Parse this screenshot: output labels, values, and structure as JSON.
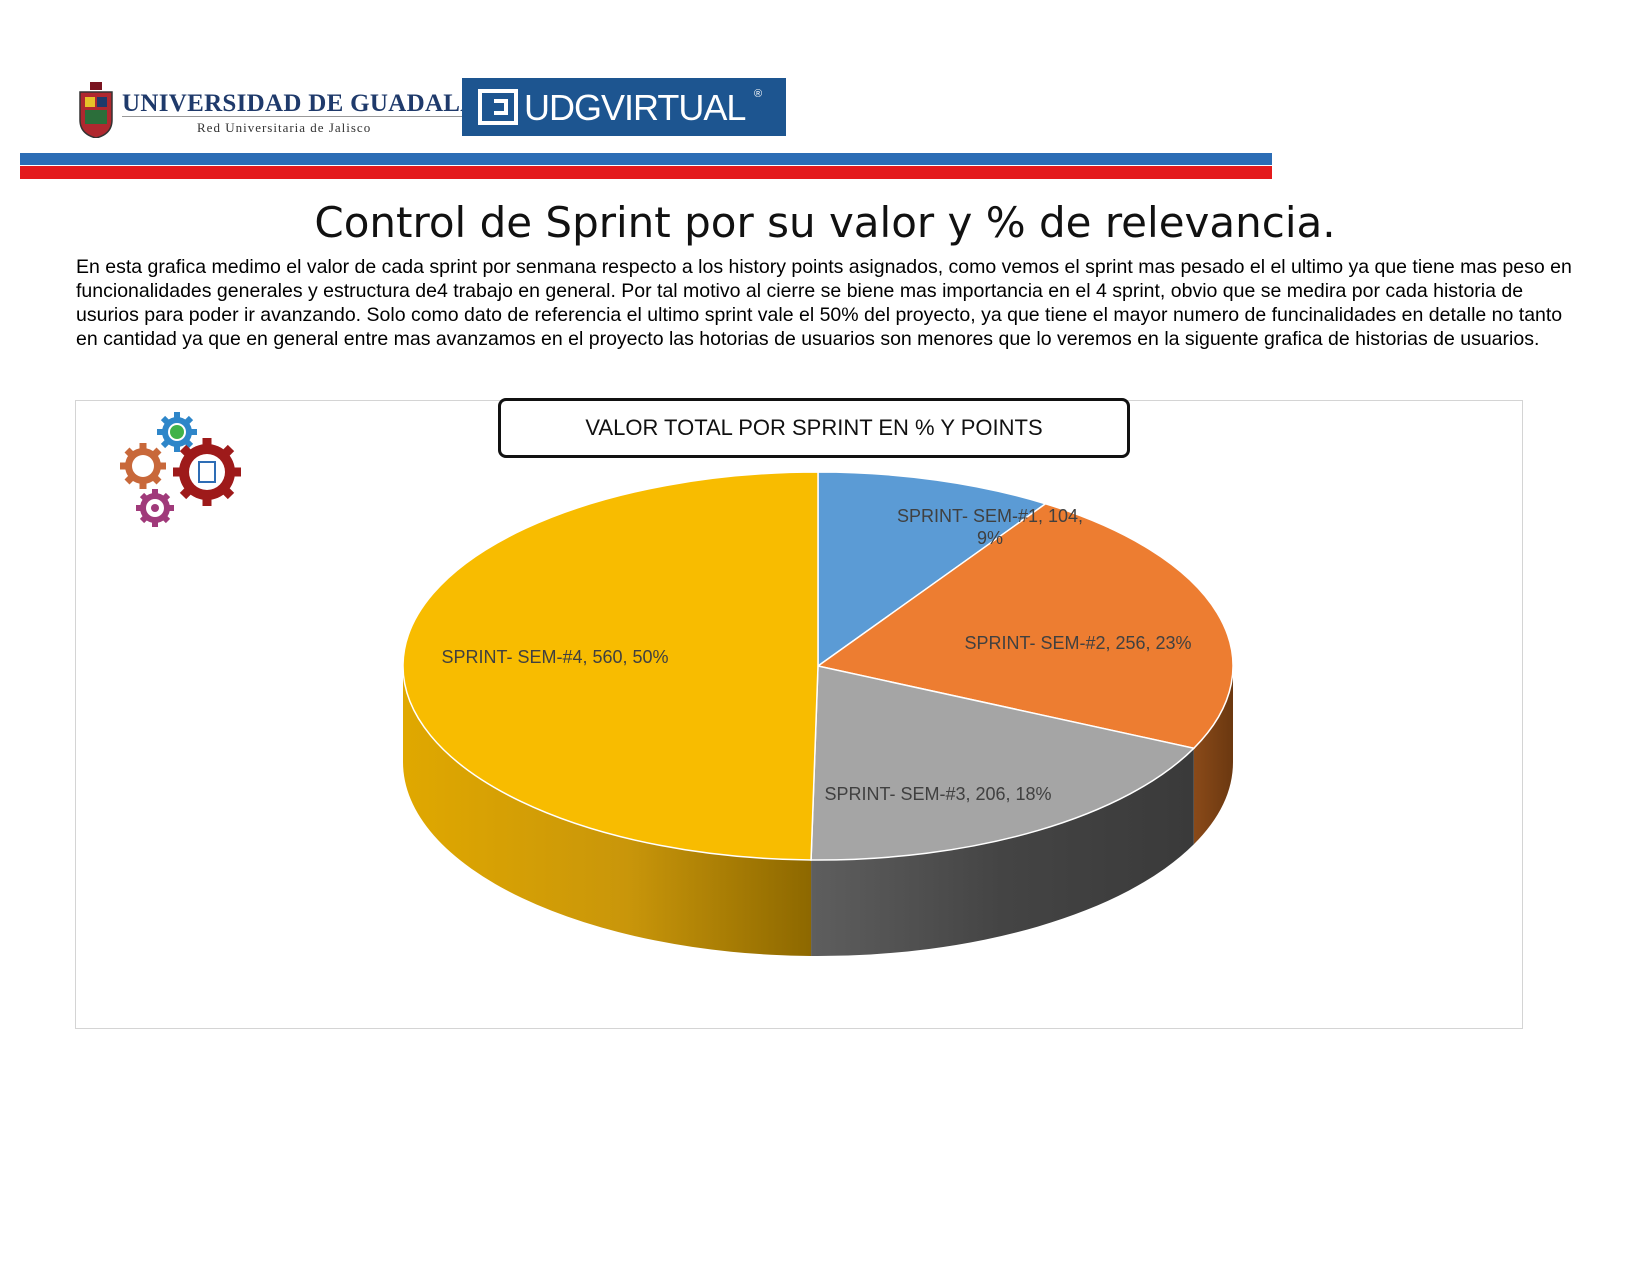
{
  "header": {
    "udg_name": "UNIVERSIDAD DE GUADALAJARA",
    "udg_subtitle": "Red Universitaria de Jalisco",
    "virtual_brand": "UDGVIRTUAL",
    "virtual_mark": "®",
    "stripe_colors": [
      "#2c6db5",
      "#e41a1c"
    ]
  },
  "page_title": "Control de Sprint por su valor y % de relevancia.",
  "intro_text": "En esta grafica medimo el valor de cada sprint por senmana respecto a los history points asignados, como vemos el sprint mas pesado el el ultimo ya que tiene mas peso en funcionalidades generales y estructura de4 trabajo en general. Por tal motivo al cierre se biene mas importancia en el 4 sprint, obvio que se medira por cada historia de usurios para poder ir avanzando. Solo como dato de referencia el ultimo sprint vale el 50% del proyecto, ya que tiene el mayor numero de funcinalidades en detalle no tanto en cantidad ya que en general entre mas avanzamos en el proyecto las hotorias de usuarios son menores que lo veremos en la siguente grafica de historias de usuarios.",
  "chart_data": {
    "type": "pie",
    "style": "3d-pie",
    "title": "VALOR TOTAL POR SPRINT EN % Y POINTS",
    "categories": [
      "SPRINT- SEM-#1",
      "SPRINT- SEM-#2",
      "SPRINT- SEM-#3",
      "SPRINT- SEM-#4"
    ],
    "values": [
      104,
      256,
      206,
      560
    ],
    "percent_labels": [
      "9%",
      "23%",
      "18%",
      "50%"
    ],
    "data_labels": [
      "SPRINT- SEM-#1, 104, 9%",
      "SPRINT- SEM-#2, 256, 23%",
      "SPRINT- SEM-#3, 206, 18%",
      "SPRINT- SEM-#4, 560, 50%"
    ],
    "colors": [
      "#5b9bd5",
      "#ed7d31",
      "#a5a5a5",
      "#f8bc00"
    ],
    "legend": "none"
  },
  "decoration": {
    "icon": "gears-icon"
  }
}
